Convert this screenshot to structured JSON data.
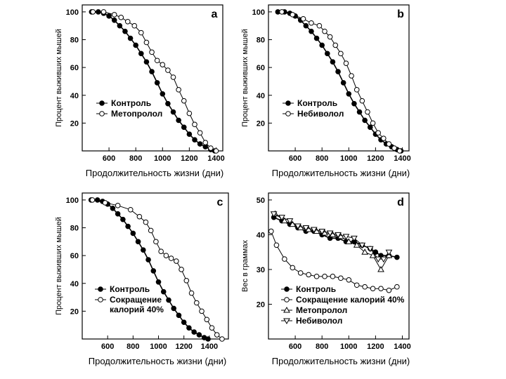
{
  "chart_data": [
    {
      "id": "a",
      "type": "line",
      "panel_label": "a",
      "xlabel": "Продолжительность жизни (дни)",
      "ylabel": "Процент выживших мышей",
      "xlim": [
        400,
        1450
      ],
      "ylim": [
        0,
        105
      ],
      "xticks": [
        "600",
        "800",
        "1000",
        "1200",
        "1400"
      ],
      "xtick_values": [
        600,
        800,
        1000,
        1200,
        1400
      ],
      "yticks": [
        "20",
        "40",
        "60",
        "80",
        "100"
      ],
      "ytick_values": [
        20,
        40,
        60,
        80,
        100
      ],
      "legend": [
        "Контроль",
        "Метопролол"
      ],
      "series": [
        {
          "name": "Контроль",
          "marker": "filled-circle",
          "x": [
            470,
            520,
            560,
            600,
            640,
            680,
            720,
            760,
            800,
            840,
            880,
            920,
            960,
            1000,
            1040,
            1080,
            1120,
            1160,
            1200,
            1240,
            1280,
            1320,
            1360,
            1390
          ],
          "y": [
            100,
            100,
            99,
            97,
            94,
            90,
            86,
            81,
            76,
            70,
            64,
            57,
            49,
            41,
            34,
            28,
            22,
            17,
            12,
            8,
            5,
            3,
            1,
            0
          ]
        },
        {
          "name": "Метопролол",
          "marker": "open-circle",
          "x": [
            480,
            560,
            640,
            690,
            740,
            790,
            840,
            880,
            920,
            960,
            1000,
            1040,
            1080,
            1120,
            1160,
            1200,
            1240,
            1280,
            1320,
            1360,
            1400
          ],
          "y": [
            100,
            100,
            98,
            96,
            93,
            90,
            85,
            78,
            71,
            65,
            62,
            58,
            53,
            44,
            36,
            27,
            19,
            13,
            6,
            2,
            0
          ]
        }
      ]
    },
    {
      "id": "b",
      "type": "line",
      "panel_label": "b",
      "xlabel": "Продолжительность жизни (дни)",
      "ylabel": "Процент выживших мышей",
      "xlim": [
        400,
        1450
      ],
      "ylim": [
        0,
        105
      ],
      "xticks": [
        "600",
        "800",
        "1000",
        "1200",
        "1400"
      ],
      "xtick_values": [
        600,
        800,
        1000,
        1200,
        1400
      ],
      "yticks": [
        "20",
        "40",
        "60",
        "80",
        "100"
      ],
      "ytick_values": [
        20,
        40,
        60,
        80,
        100
      ],
      "legend": [
        "Контроль",
        "Небиволол"
      ],
      "series": [
        {
          "name": "Контроль",
          "marker": "filled-circle",
          "x": [
            470,
            520,
            560,
            600,
            640,
            680,
            720,
            760,
            800,
            840,
            880,
            920,
            960,
            1000,
            1040,
            1080,
            1120,
            1160,
            1200,
            1240,
            1280,
            1320,
            1360,
            1390
          ],
          "y": [
            100,
            100,
            99,
            97,
            94,
            90,
            86,
            81,
            76,
            70,
            64,
            57,
            49,
            41,
            34,
            28,
            22,
            17,
            12,
            8,
            5,
            3,
            1,
            0
          ]
        },
        {
          "name": "Небиволол",
          "marker": "open-circle",
          "x": [
            500,
            580,
            660,
            720,
            780,
            820,
            860,
            900,
            940,
            980,
            1020,
            1060,
            1100,
            1140,
            1180,
            1220,
            1260,
            1300,
            1340,
            1380
          ],
          "y": [
            100,
            98,
            95,
            92,
            90,
            86,
            82,
            76,
            70,
            63,
            54,
            44,
            36,
            28,
            20,
            13,
            9,
            5,
            2,
            0
          ]
        }
      ]
    },
    {
      "id": "c",
      "type": "line",
      "panel_label": "c",
      "xlabel": "Продолжительность жизни (дни)",
      "ylabel": "Процент выживших мышей",
      "xlim": [
        400,
        1550
      ],
      "ylim": [
        0,
        105
      ],
      "xticks": [
        "600",
        "800",
        "1000",
        "1200",
        "1400"
      ],
      "xtick_values": [
        600,
        800,
        1000,
        1200,
        1400
      ],
      "yticks": [
        "20",
        "40",
        "60",
        "80",
        "100"
      ],
      "ytick_values": [
        20,
        40,
        60,
        80,
        100
      ],
      "legend": [
        "Контроль",
        "Сокращение калорий 40%"
      ],
      "series": [
        {
          "name": "Контроль",
          "marker": "filled-circle",
          "x": [
            470,
            520,
            560,
            600,
            640,
            680,
            720,
            760,
            800,
            840,
            880,
            920,
            960,
            1000,
            1040,
            1080,
            1120,
            1160,
            1200,
            1240,
            1280,
            1320,
            1360,
            1390
          ],
          "y": [
            100,
            100,
            99,
            97,
            94,
            90,
            86,
            81,
            76,
            70,
            64,
            57,
            49,
            41,
            34,
            28,
            22,
            17,
            12,
            8,
            5,
            3,
            1,
            0
          ]
        },
        {
          "name": "Сокращение калорий 40%",
          "marker": "open-circle",
          "x": [
            480,
            580,
            680,
            780,
            850,
            900,
            940,
            980,
            1020,
            1060,
            1100,
            1140,
            1180,
            1220,
            1260,
            1300,
            1340,
            1380,
            1420,
            1460,
            1500
          ],
          "y": [
            100,
            98,
            96,
            93,
            88,
            84,
            78,
            70,
            63,
            60,
            58,
            56,
            50,
            42,
            33,
            26,
            20,
            14,
            8,
            3,
            0
          ]
        }
      ]
    },
    {
      "id": "d",
      "type": "line",
      "panel_label": "d",
      "xlabel": "Продолжительность жизни (дни)",
      "ylabel": "Вес в граммах",
      "xlim": [
        400,
        1450
      ],
      "ylim": [
        10,
        52
      ],
      "xticks": [
        "600",
        "800",
        "1000",
        "1200",
        "1400"
      ],
      "xtick_values": [
        600,
        800,
        1000,
        1200,
        1400
      ],
      "yticks": [
        "20",
        "30",
        "40",
        "50"
      ],
      "ytick_values": [
        20,
        30,
        40,
        50
      ],
      "legend": [
        "Контроль",
        "Сокращение калорий 40%",
        "Метопролол",
        "Небиволол"
      ],
      "series": [
        {
          "name": "Контроль",
          "marker": "filled-circle",
          "x": [
            440,
            500,
            560,
            620,
            680,
            740,
            800,
            860,
            920,
            980,
            1040,
            1100,
            1160,
            1200,
            1240,
            1300,
            1360
          ],
          "y": [
            45,
            44,
            43,
            42,
            41,
            41,
            40,
            39,
            39,
            38,
            38,
            37,
            36,
            35,
            34,
            34,
            33.5
          ]
        },
        {
          "name": "Сокращение калорий 40%",
          "marker": "open-circle",
          "x": [
            420,
            460,
            520,
            580,
            640,
            700,
            760,
            820,
            880,
            940,
            1000,
            1060,
            1120,
            1180,
            1240,
            1300,
            1360
          ],
          "y": [
            41,
            37,
            33,
            30.5,
            29,
            28.5,
            28,
            28,
            28,
            27.5,
            27,
            25.5,
            25,
            24.5,
            24.5,
            24,
            25
          ]
        },
        {
          "name": "Метопролол",
          "marker": "open-triangle-up",
          "x": [
            450,
            520,
            580,
            640,
            700,
            760,
            820,
            880,
            940,
            1000,
            1060,
            1120,
            1180,
            1240,
            1300
          ],
          "y": [
            46,
            44,
            43,
            42,
            41.5,
            41,
            40.5,
            40,
            39.5,
            38,
            37,
            35,
            34,
            30,
            34
          ]
        },
        {
          "name": "Небиволол",
          "marker": "open-triangle-down",
          "x": [
            440,
            500,
            560,
            620,
            680,
            740,
            800,
            860,
            920,
            980,
            1040,
            1100,
            1160,
            1220,
            1260,
            1300
          ],
          "y": [
            46,
            45,
            44,
            42.5,
            42,
            41.5,
            41,
            40.5,
            40,
            39.5,
            39,
            37,
            36,
            33,
            33,
            35
          ]
        }
      ]
    }
  ]
}
